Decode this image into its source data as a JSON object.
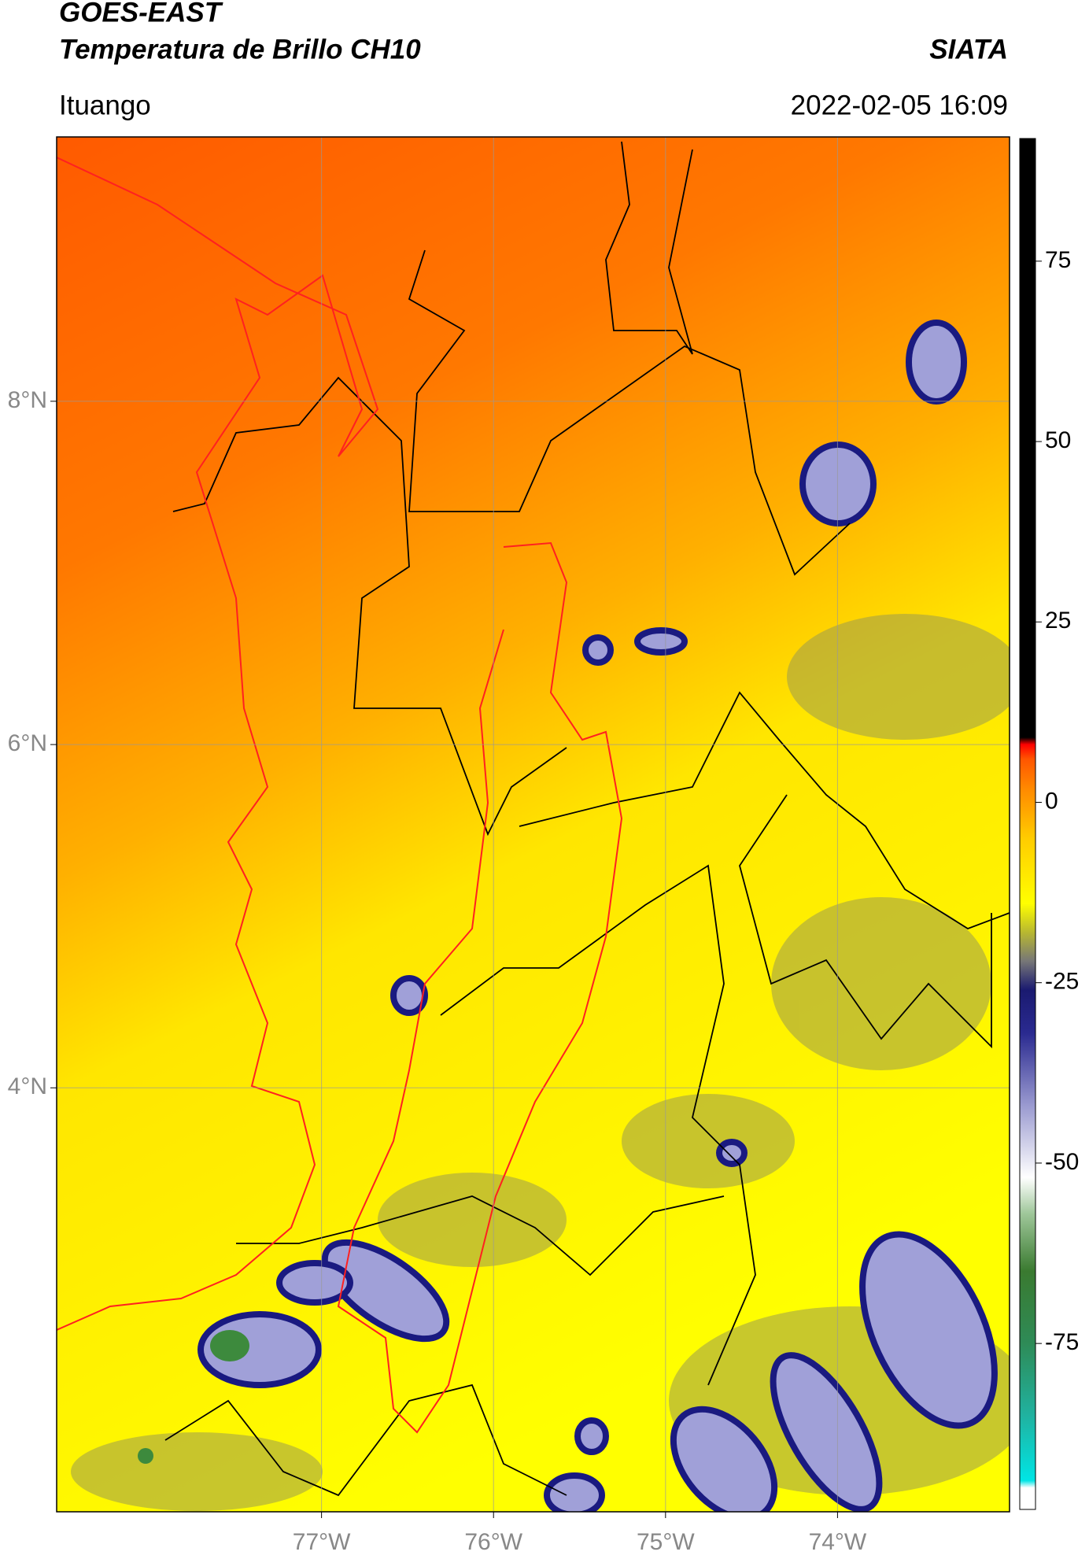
{
  "header": {
    "title": "GOES-EAST",
    "subtitle": "Temperatura de Brillo CH10",
    "brand": "SIATA",
    "location": "Ituango",
    "datetime": "2022-02-05 16:09"
  },
  "map": {
    "xlim": [
      -78.54,
      -73.0
    ],
    "ylim": [
      1.53,
      9.54
    ],
    "xticks": [
      {
        "value": -77,
        "label": "77°W"
      },
      {
        "value": -76,
        "label": "76°W"
      },
      {
        "value": -75,
        "label": "75°W"
      },
      {
        "value": -74,
        "label": "74°W"
      }
    ],
    "yticks": [
      {
        "value": 8,
        "label": "8°N"
      },
      {
        "value": 6,
        "label": "6°N"
      },
      {
        "value": 4,
        "label": "4°N"
      }
    ],
    "grid": true
  },
  "colorbar": {
    "lim": [
      -98,
      92
    ],
    "ticks": [
      75,
      50,
      25,
      0,
      -25,
      -50,
      -75
    ],
    "stops": [
      {
        "value": -98,
        "color": "#ffffff"
      },
      {
        "value": -95,
        "color": "#ffffff"
      },
      {
        "value": -94,
        "color": "#00e5e5"
      },
      {
        "value": -85,
        "color": "#20b2a0"
      },
      {
        "value": -75,
        "color": "#2e8b57"
      },
      {
        "value": -65,
        "color": "#3a7a30"
      },
      {
        "value": -57,
        "color": "#9fc79a"
      },
      {
        "value": -52,
        "color": "#ffffff"
      },
      {
        "value": -42,
        "color": "#9a9ad0"
      },
      {
        "value": -32,
        "color": "#2a2a90"
      },
      {
        "value": -26,
        "color": "#1a1a70"
      },
      {
        "value": -22,
        "color": "#777777"
      },
      {
        "value": -18,
        "color": "#b8b830"
      },
      {
        "value": -14,
        "color": "#ffff00"
      },
      {
        "value": -5,
        "color": "#ffcc00"
      },
      {
        "value": 2,
        "color": "#ff8800"
      },
      {
        "value": 6,
        "color": "#ff5500"
      },
      {
        "value": 8,
        "color": "#ff0000"
      },
      {
        "value": 9,
        "color": "#000000"
      },
      {
        "value": 92,
        "color": "#000000"
      }
    ]
  }
}
